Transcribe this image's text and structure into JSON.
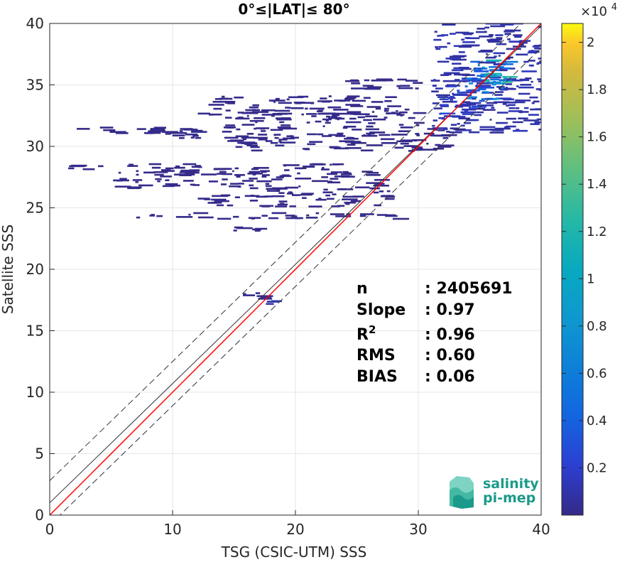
{
  "chart_data": {
    "type": "heatmap",
    "title": "0°≤|LAT|≤ 80°",
    "xlabel": "TSG (CSIC-UTM) SSS",
    "ylabel": "Satellite SSS",
    "xlim": [
      0,
      40
    ],
    "ylim": [
      0,
      40
    ],
    "x_ticks": [
      "0",
      "10",
      "20",
      "30",
      "40"
    ],
    "y_ticks": [
      "0",
      "5",
      "10",
      "15",
      "20",
      "25",
      "30",
      "35",
      "40"
    ],
    "grid": true,
    "colorbar": {
      "multiplier": "×10",
      "exponent": "4",
      "ticks": [
        "0.2",
        "0.4",
        "0.6",
        "0.8",
        "1",
        "1.2",
        "1.4",
        "1.6",
        "1.8",
        "2"
      ],
      "range": [
        0,
        20800
      ],
      "colormap": "parula"
    },
    "lines": {
      "identity": {
        "slope": 1.0,
        "intercept": 0.0,
        "color": "#ff0000"
      },
      "regression": {
        "slope": 0.97,
        "intercept": 1.0,
        "color": "#333333"
      },
      "upper_bound": {
        "slope": 0.97,
        "intercept": 2.8,
        "dashed": true
      },
      "lower_bound": {
        "slope": 0.97,
        "intercept": -0.8,
        "dashed": true
      }
    },
    "stats": [
      {
        "label": "n",
        "value": ": 2405691"
      },
      {
        "label": "Slope",
        "value": ": 0.97"
      },
      {
        "label": "R",
        "sup": "2",
        "value": ": 0.96"
      },
      {
        "label": "RMS",
        "value": ": 0.60"
      },
      {
        "label": "BIAS",
        "value": ": 0.06"
      }
    ],
    "density_cells": [
      {
        "x": [
          31,
          40
        ],
        "y": [
          31,
          40
        ],
        "count": 1200
      },
      {
        "x": [
          33.5,
          37
        ],
        "y": [
          33.5,
          37
        ],
        "count": 7000
      },
      {
        "x": [
          35,
          37
        ],
        "y": [
          35,
          37
        ],
        "count": 12000
      },
      {
        "x": [
          31,
          35
        ],
        "y": [
          32.5,
          35.5
        ],
        "count": 2500
      },
      {
        "x": [
          17,
          18.5
        ],
        "y": [
          17,
          18
        ],
        "count": 1500
      },
      {
        "x": [
          15.5,
          17.5
        ],
        "y": [
          17.5,
          18
        ],
        "count": 300
      },
      {
        "x": [
          1,
          10
        ],
        "y": [
          31,
          31.5
        ],
        "count": 100
      },
      {
        "x": [
          7,
          33
        ],
        "y": [
          30.5,
          31.5
        ],
        "count": 150
      },
      {
        "x": [
          14,
          30
        ],
        "y": [
          31.5,
          33
        ],
        "count": 150
      },
      {
        "x": [
          12,
          28
        ],
        "y": [
          32.5,
          34
        ],
        "count": 150
      },
      {
        "x": [
          24,
          30
        ],
        "y": [
          34.5,
          35.5
        ],
        "count": 150
      },
      {
        "x": [
          14,
          32
        ],
        "y": [
          29.5,
          30.5
        ],
        "count": 150
      },
      {
        "x": [
          1,
          24
        ],
        "y": [
          28,
          28.5
        ],
        "count": 120
      },
      {
        "x": [
          5,
          27
        ],
        "y": [
          26.5,
          28
        ],
        "count": 120
      },
      {
        "x": [
          17,
          28
        ],
        "y": [
          26,
          26.5
        ],
        "count": 120
      },
      {
        "x": [
          12,
          28
        ],
        "y": [
          25,
          26
        ],
        "count": 120
      },
      {
        "x": [
          7,
          28
        ],
        "y": [
          24,
          24.5
        ],
        "count": 120
      },
      {
        "x": [
          14,
          17
        ],
        "y": [
          23,
          23.5
        ],
        "count": 100
      }
    ]
  },
  "logo": {
    "line1": "salinity",
    "line2": "pi-mep"
  }
}
